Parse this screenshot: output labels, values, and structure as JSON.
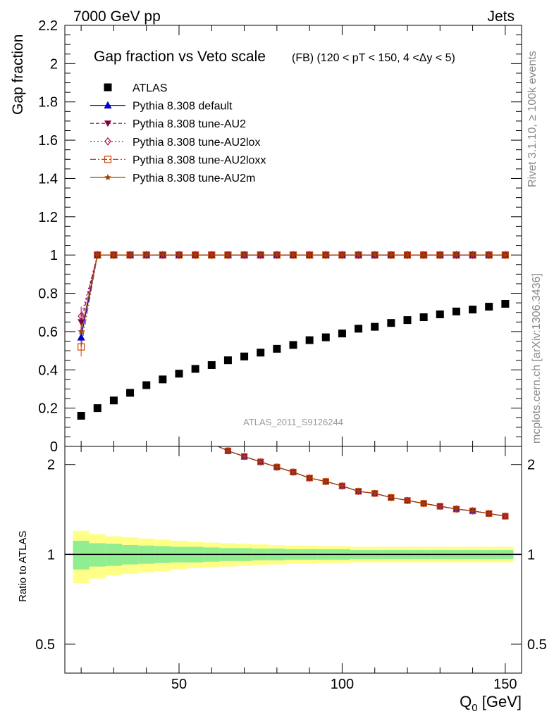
{
  "header": {
    "left": "7000 GeV pp",
    "right": "Jets"
  },
  "side_labels": {
    "rivet": "Rivet 3.1.10, ≥ 100k events",
    "mcplots": "mcplots.cern.ch [arXiv:1306.3436]"
  },
  "watermark": "ATLAS_2011_S9126244",
  "colors": {
    "atlas": "#000000",
    "default": "#0000cc",
    "au2": "#800040",
    "au2lox": "#b00050",
    "au2loxx": "#cc4400",
    "au2m": "#994400",
    "band_inner": "#90ee90",
    "band_outer": "#ffff88"
  },
  "legend": [
    {
      "key": "atlas",
      "label": "ATLAS"
    },
    {
      "key": "default",
      "label": "Pythia 8.308 default"
    },
    {
      "key": "au2",
      "label": "Pythia 8.308 tune-AU2"
    },
    {
      "key": "au2lox",
      "label": "Pythia 8.308 tune-AU2lox"
    },
    {
      "key": "au2loxx",
      "label": "Pythia 8.308 tune-AU2loxx"
    },
    {
      "key": "au2m",
      "label": "Pythia 8.308 tune-AU2m"
    }
  ],
  "chart_data": {
    "type": "scatter",
    "title": "Gap fraction vs Veto scale",
    "subtitle": "(FB) (120 < pT < 150, 4 <Δy < 5)",
    "xlabel": "Q",
    "xlabel_sub": "0",
    "xlabel_unit": " [GeV]",
    "ylabel": "Gap fraction",
    "ratio_ylabel": "Ratio to ATLAS",
    "xlim": [
      15,
      155
    ],
    "ylim": [
      0,
      2.2
    ],
    "ratio_ylim": [
      0.4,
      2.3
    ],
    "x_ticks": [
      50,
      100,
      150
    ],
    "y_ticks": [
      0,
      0.2,
      0.4,
      0.6,
      0.8,
      1,
      1.2,
      1.4,
      1.6,
      1.8,
      2,
      2.2
    ],
    "y_tick_labels": [
      "0",
      "0.2",
      "0.4",
      "0.6",
      "0.8",
      "1",
      "1.2",
      "1.4",
      "1.6",
      "1.8",
      "2",
      "2.2"
    ],
    "ratio_ticks": [
      0.5,
      1,
      2
    ],
    "ratio_tick_labels": [
      "0.5",
      "1",
      "2"
    ],
    "x": [
      20,
      25,
      30,
      35,
      40,
      45,
      50,
      55,
      60,
      65,
      70,
      75,
      80,
      85,
      90,
      95,
      100,
      105,
      110,
      115,
      120,
      125,
      130,
      135,
      140,
      145,
      150
    ],
    "atlas": [
      0.16,
      0.2,
      0.24,
      0.28,
      0.32,
      0.35,
      0.38,
      0.405,
      0.425,
      0.45,
      0.47,
      0.49,
      0.51,
      0.53,
      0.555,
      0.57,
      0.59,
      0.615,
      0.625,
      0.645,
      0.66,
      0.675,
      0.69,
      0.705,
      0.715,
      0.73,
      0.745
    ],
    "mc_first": {
      "default": 0.57,
      "au2": 0.65,
      "au2lox": 0.68,
      "au2loxx": 0.52,
      "au2m": 0.6
    },
    "mc_rest": 1.0,
    "band_inner_half": [
      0.11,
      0.09,
      0.085,
      0.075,
      0.07,
      0.065,
      0.06,
      0.06,
      0.055,
      0.05,
      0.05,
      0.045,
      0.045,
      0.04,
      0.04,
      0.04,
      0.04,
      0.035,
      0.035,
      0.035,
      0.035,
      0.035,
      0.035,
      0.035,
      0.035,
      0.035,
      0.035
    ],
    "band_outer_half": [
      0.2,
      0.17,
      0.15,
      0.14,
      0.13,
      0.12,
      0.11,
      0.1,
      0.095,
      0.09,
      0.085,
      0.08,
      0.075,
      0.07,
      0.07,
      0.065,
      0.065,
      0.06,
      0.06,
      0.06,
      0.06,
      0.06,
      0.06,
      0.06,
      0.06,
      0.06,
      0.06
    ]
  }
}
